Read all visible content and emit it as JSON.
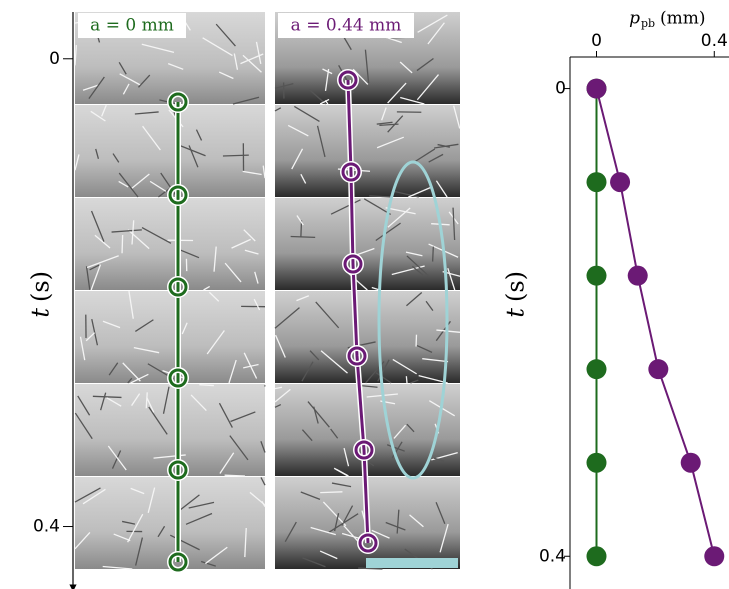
{
  "panel_labels": [
    "a = 0 mm",
    "a = 0.44 mm"
  ],
  "left_axis": {
    "label_symbol": "t",
    "label_unit": "(s)",
    "ylim": [
      -0.04,
      0.45
    ],
    "yticks": [
      0,
      0.4
    ]
  },
  "chart_data": {
    "type": "line",
    "x_label_symbol": "p",
    "x_label_subscript": "pb",
    "x_label_unit": "(mm)",
    "y_label_symbol": "t",
    "y_label_unit": "(s)",
    "xlim": [
      -0.09,
      0.45
    ],
    "xticks": [
      0,
      0.4
    ],
    "ylim": [
      -0.027,
      0.428
    ],
    "yticks": [
      0,
      0.4
    ],
    "y_inverted": true,
    "series": [
      {
        "color": "#1e6b1e",
        "x": [
          0,
          0,
          0,
          0,
          0,
          0
        ],
        "y": [
          0,
          0.08,
          0.16,
          0.24,
          0.32,
          0.4
        ]
      },
      {
        "color": "#6b1a75",
        "x": [
          0,
          0.08,
          0.14,
          0.21,
          0.32,
          0.4
        ],
        "y": [
          0,
          0.08,
          0.16,
          0.24,
          0.32,
          0.4
        ]
      }
    ]
  }
}
